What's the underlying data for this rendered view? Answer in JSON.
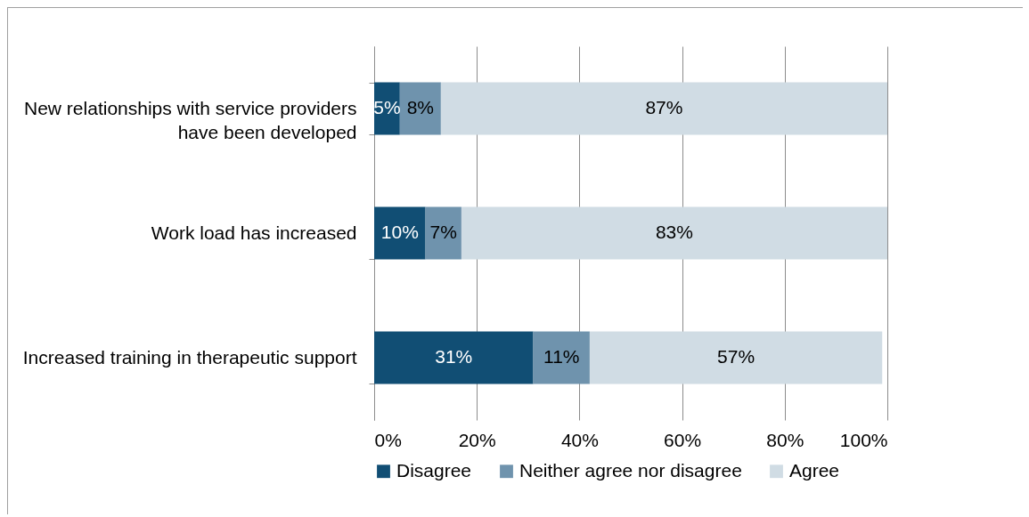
{
  "chart_data": {
    "type": "bar",
    "orientation": "horizontal",
    "stacked": true,
    "categories": [
      "New relationships with service providers have been developed",
      "Work load has increased",
      "Increased training in therapeutic support"
    ],
    "series": [
      {
        "name": "Disagree",
        "color": "#114e74",
        "values": [
          5,
          10,
          31
        ],
        "value_labels": [
          "5%",
          "10%",
          "31%"
        ]
      },
      {
        "name": "Neither agree nor disagree",
        "color": "#6f93ad",
        "values": [
          8,
          7,
          11
        ],
        "value_labels": [
          "8%",
          "7%",
          "11%"
        ]
      },
      {
        "name": "Agree",
        "color": "#d0dce4",
        "values": [
          87,
          83,
          57
        ],
        "value_labels": [
          "87%",
          "83%",
          "57%"
        ]
      }
    ],
    "xlim": [
      0,
      100
    ],
    "xticks": [
      {
        "value": 0,
        "label": "0%"
      },
      {
        "value": 20,
        "label": "20%"
      },
      {
        "value": 40,
        "label": "40%"
      },
      {
        "value": 60,
        "label": "60%"
      },
      {
        "value": 80,
        "label": "80%"
      },
      {
        "value": 100,
        "label": "100%"
      }
    ],
    "grid": "x",
    "legend": "bottom"
  }
}
